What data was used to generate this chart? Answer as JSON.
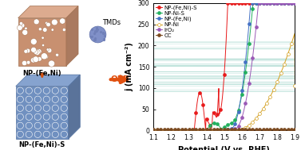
{
  "xlabel": "Potential (V vs. RHE)",
  "ylabel": "j (mA cm⁻²)",
  "xlim": [
    1.1,
    1.9
  ],
  "ylim": [
    0,
    300
  ],
  "xticks": [
    1.1,
    1.2,
    1.3,
    1.4,
    1.5,
    1.6,
    1.7,
    1.8,
    1.9
  ],
  "yticks": [
    0,
    50,
    100,
    150,
    200,
    250,
    300
  ],
  "colors": {
    "NP-(Fe,Ni)-S": "#e8191a",
    "NP-Ni-S": "#22b05e",
    "NP-(Fe,Ni)": "#4472c4",
    "NP-Ni": "#d4a020",
    "IrO2": "#9b59b6",
    "CC": "#7b4a20"
  },
  "legend_labels": [
    "NP-(Fe,Ni)-S",
    "NP-Ni-S",
    "NP-(Fe,Ni)",
    "NP-Ni",
    "IrO₂",
    "CC"
  ],
  "background_color": "#ffffff",
  "legend_fontsize": 5.0,
  "axis_fontsize": 7.0,
  "tick_fontsize": 5.5,
  "cube_top_color": "#c8906a",
  "cube_side_color": "#b07050",
  "cube2_color": "#7090c8",
  "ball_color": "#8090c0",
  "arrow_color": "#d05010",
  "oer_color": "#e05010",
  "label_fontsize": 6.0
}
